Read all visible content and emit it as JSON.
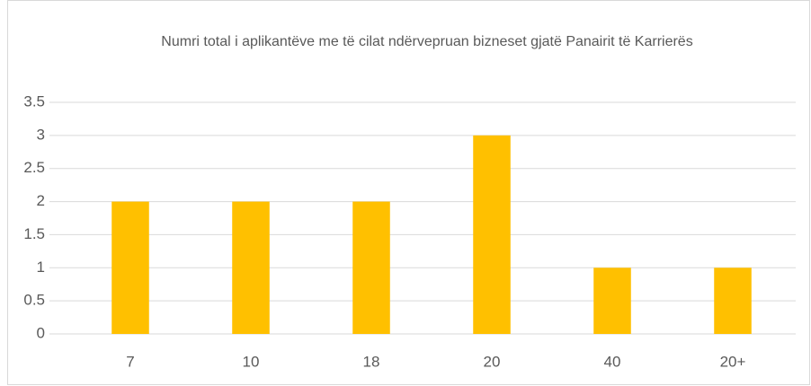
{
  "chart_data": {
    "type": "bar",
    "title": "Numri total i aplikantëve me të cilat ndërvepruan bizneset gjatë Panairit të Karrierës",
    "categories": [
      "7",
      "10",
      "18",
      "20",
      "40",
      "20+"
    ],
    "values": [
      2,
      2,
      2,
      3,
      1,
      1
    ],
    "color": "#ffc000",
    "ylim": [
      0,
      3.5
    ],
    "yticks": [
      0,
      0.5,
      1,
      1.5,
      2,
      2.5,
      3,
      3.5
    ],
    "grid": true
  }
}
